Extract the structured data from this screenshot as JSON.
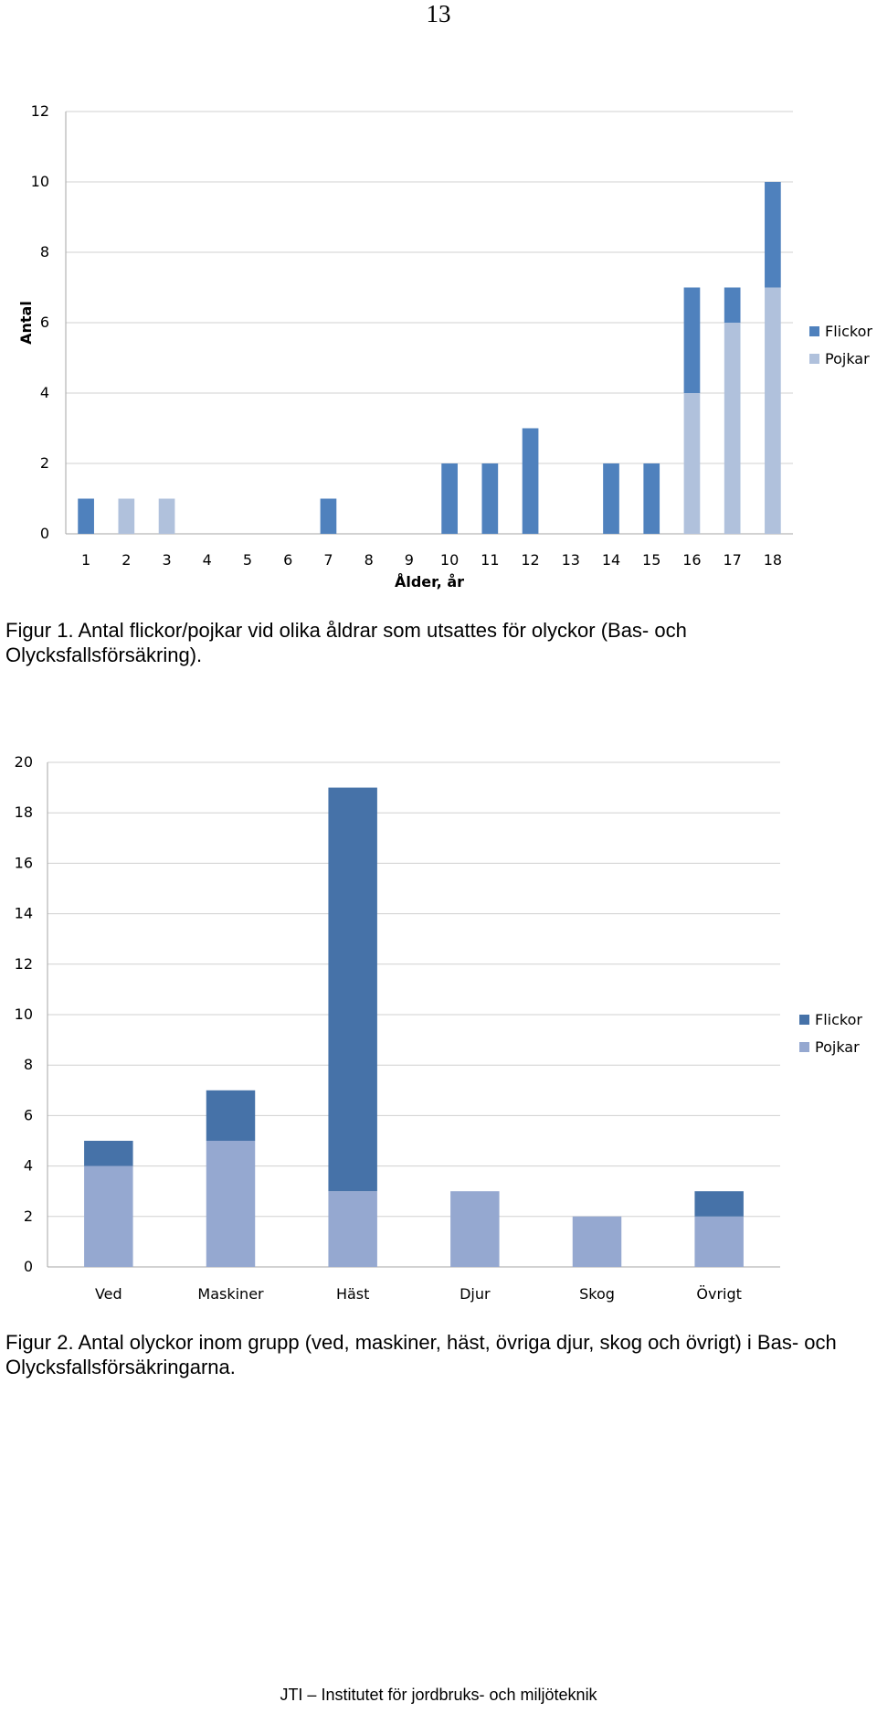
{
  "page_number": "13",
  "colors": {
    "flickor_chart1": "#4f81bd",
    "pojkar_chart1": "#b0c1dc",
    "flickor_chart2": "#4672a8",
    "pojkar_chart2": "#95a8d0",
    "grid": "#d0d0d0",
    "axis": "#a6a6a6"
  },
  "chart_data": [
    {
      "type": "bar",
      "stacked": true,
      "categories": [
        "1",
        "2",
        "3",
        "4",
        "5",
        "6",
        "7",
        "8",
        "9",
        "10",
        "11",
        "12",
        "13",
        "14",
        "15",
        "16",
        "17",
        "18"
      ],
      "series": [
        {
          "name": "Flickor",
          "values": [
            1,
            0,
            0,
            0,
            0,
            0,
            1,
            0,
            0,
            2,
            2,
            3,
            0,
            2,
            2,
            3,
            1,
            3
          ]
        },
        {
          "name": "Pojkar",
          "values": [
            0,
            1,
            1,
            0,
            0,
            0,
            0,
            0,
            0,
            0,
            0,
            0,
            0,
            0,
            0,
            4,
            6,
            7
          ]
        }
      ],
      "xlabel": "Ålder, år",
      "ylabel": "Antal",
      "ylim": [
        0,
        12
      ],
      "yticks": [
        "0",
        "2",
        "4",
        "6",
        "8",
        "10",
        "12"
      ],
      "grid": true,
      "legend": "right"
    },
    {
      "type": "bar",
      "stacked": true,
      "categories": [
        "Ved",
        "Maskiner",
        "Häst",
        "Djur",
        "Skog",
        "Övrigt"
      ],
      "series": [
        {
          "name": "Flickor",
          "values": [
            1,
            2,
            16,
            0,
            0,
            1
          ]
        },
        {
          "name": "Pojkar",
          "values": [
            4,
            5,
            3,
            3,
            2,
            2
          ]
        }
      ],
      "xlabel": "",
      "ylabel": "",
      "ylim": [
        0,
        20
      ],
      "yticks": [
        "0",
        "2",
        "4",
        "6",
        "8",
        "10",
        "12",
        "14",
        "16",
        "18",
        "20"
      ],
      "grid": true,
      "legend": "right"
    }
  ],
  "captions": {
    "figure1": "Figur 1. Antal flickor/pojkar vid olika åldrar som utsattes för olyckor (Bas- och Olycksfallsförsäkring).",
    "figure2": "Figur 2. Antal olyckor inom grupp (ved, maskiner, häst, övriga djur, skog och övrigt) i Bas- och Olycksfallsförsäkringarna."
  },
  "footer": "JTI – Institutet för jordbruks- och miljöteknik"
}
